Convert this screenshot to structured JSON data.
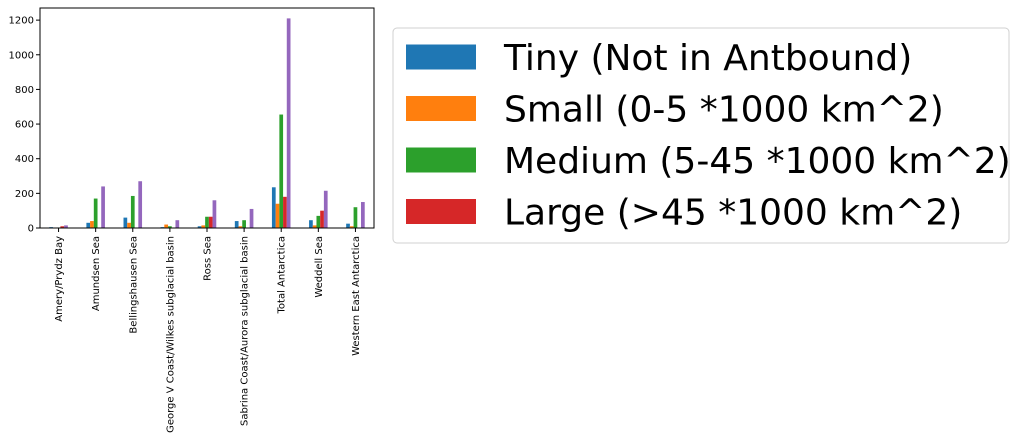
{
  "chart_data": {
    "type": "bar",
    "categories": [
      "Amery/Prydz Bay",
      "Amundsen Sea",
      "Bellingshausen Sea",
      "George V Coast/Wilkes subglacial basin",
      "Ross Sea",
      "Sabrina Coast/Aurora subglacial basin",
      "Total Antarctica",
      "Weddell Sea",
      "Western East Antarctica"
    ],
    "series": [
      {
        "name": "Tiny (Not in Antbound)",
        "color": "#1f77b4",
        "values": [
          5,
          30,
          60,
          5,
          10,
          40,
          235,
          45,
          25
        ]
      },
      {
        "name": "Small (0-5 *1000 km^2)",
        "color": "#ff7f0e",
        "values": [
          2,
          40,
          30,
          20,
          15,
          10,
          140,
          15,
          10
        ]
      },
      {
        "name": "Medium (5-45 *1000 km^2)",
        "color": "#2ca02c",
        "values": [
          3,
          170,
          185,
          10,
          65,
          45,
          655,
          70,
          120
        ]
      },
      {
        "name": "Large (>45 *1000 km^2)",
        "color": "#d62728",
        "values": [
          10,
          0,
          0,
          0,
          65,
          0,
          180,
          100,
          0
        ]
      },
      {
        "name": "",
        "color": "#9467bd",
        "values": [
          15,
          240,
          270,
          45,
          160,
          110,
          1210,
          215,
          150
        ]
      }
    ],
    "yticks": [
      0,
      200,
      400,
      600,
      800,
      1000,
      1200
    ],
    "ylim": [
      0,
      1270
    ],
    "legend_placement": "right, outside plot"
  }
}
